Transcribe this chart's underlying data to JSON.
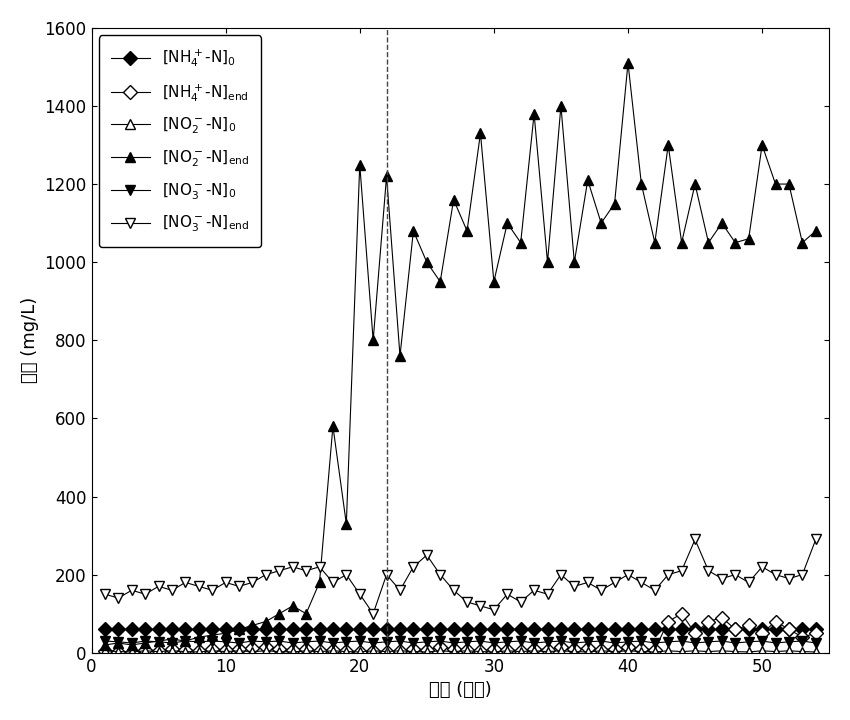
{
  "xlabel": "时间 (周期)",
  "ylabel": "浓度 (mg/L)",
  "xlim": [
    0,
    55
  ],
  "ylim": [
    0,
    1600
  ],
  "yticks": [
    0,
    200,
    400,
    600,
    800,
    1000,
    1200,
    1400,
    1600
  ],
  "xticks": [
    0,
    10,
    20,
    30,
    40,
    50
  ],
  "dashed_vline_x": 22,
  "NH4_N_0_x": [
    1,
    2,
    3,
    4,
    5,
    6,
    7,
    8,
    9,
    10,
    11,
    12,
    13,
    14,
    15,
    16,
    17,
    18,
    19,
    20,
    21,
    22,
    23,
    24,
    25,
    26,
    27,
    28,
    29,
    30,
    31,
    32,
    33,
    34,
    35,
    36,
    37,
    38,
    39,
    40,
    41,
    42,
    43,
    44,
    45,
    46,
    47,
    48,
    49,
    50,
    51,
    52,
    53,
    54
  ],
  "NH4_N_0_y": [
    60,
    60,
    60,
    60,
    60,
    60,
    60,
    60,
    60,
    60,
    60,
    60,
    60,
    60,
    60,
    60,
    60,
    60,
    60,
    60,
    60,
    60,
    60,
    60,
    60,
    60,
    60,
    60,
    60,
    60,
    60,
    60,
    60,
    60,
    60,
    60,
    60,
    60,
    60,
    60,
    60,
    60,
    60,
    60,
    60,
    60,
    60,
    60,
    60,
    60,
    60,
    60,
    60,
    60
  ],
  "NH4_N_end_x": [
    1,
    2,
    3,
    4,
    5,
    6,
    7,
    8,
    9,
    10,
    11,
    12,
    13,
    14,
    15,
    16,
    17,
    18,
    19,
    20,
    21,
    22,
    23,
    24,
    25,
    26,
    27,
    28,
    29,
    30,
    31,
    32,
    33,
    34,
    35,
    36,
    37,
    38,
    39,
    40,
    41,
    42,
    43,
    44,
    45,
    46,
    47,
    48,
    49,
    50,
    51,
    52,
    53,
    54
  ],
  "NH4_N_end_y": [
    5,
    3,
    2,
    8,
    5,
    10,
    8,
    5,
    10,
    8,
    10,
    12,
    15,
    10,
    8,
    10,
    5,
    8,
    5,
    3,
    5,
    3,
    5,
    10,
    8,
    15,
    10,
    8,
    5,
    10,
    8,
    5,
    10,
    8,
    15,
    10,
    12,
    8,
    10,
    15,
    10,
    8,
    80,
    100,
    50,
    80,
    90,
    60,
    70,
    50,
    80,
    60,
    40,
    50
  ],
  "NO2_N_0_x": [
    1,
    2,
    3,
    4,
    5,
    6,
    7,
    8,
    9,
    10,
    11,
    12,
    13,
    14,
    15,
    16,
    17,
    18,
    19,
    20,
    21,
    22,
    23,
    24,
    25,
    26,
    27,
    28,
    29,
    30,
    31,
    32,
    33,
    34,
    35,
    36,
    37,
    38,
    39,
    40,
    41,
    42,
    43,
    44,
    45,
    46,
    47,
    48,
    49,
    50,
    51,
    52,
    53,
    54
  ],
  "NO2_N_0_y": [
    5,
    3,
    2,
    5,
    3,
    5,
    3,
    2,
    5,
    3,
    5,
    3,
    5,
    3,
    2,
    5,
    3,
    5,
    3,
    2,
    5,
    3,
    5,
    3,
    2,
    5,
    3,
    5,
    3,
    2,
    5,
    3,
    5,
    3,
    5,
    3,
    2,
    5,
    3,
    5,
    3,
    2,
    5,
    3,
    5,
    3,
    5,
    3,
    2,
    5,
    3,
    5,
    3,
    2
  ],
  "NO2_N_end_x": [
    1,
    2,
    3,
    4,
    5,
    6,
    7,
    8,
    9,
    10,
    11,
    12,
    13,
    14,
    15,
    16,
    17,
    18,
    19,
    20,
    21,
    22,
    23,
    24,
    25,
    26,
    27,
    28,
    29,
    30,
    31,
    32,
    33,
    34,
    35,
    36,
    37,
    38,
    39,
    40,
    41,
    42,
    43,
    44,
    45,
    46,
    47,
    48,
    49,
    50,
    51,
    52,
    53,
    54
  ],
  "NO2_N_end_y": [
    20,
    25,
    20,
    25,
    30,
    35,
    30,
    40,
    45,
    50,
    60,
    70,
    80,
    100,
    120,
    100,
    180,
    580,
    330,
    1250,
    800,
    1220,
    760,
    1080,
    1000,
    950,
    1160,
    1080,
    1330,
    950,
    1100,
    1050,
    1380,
    1000,
    1400,
    1000,
    1210,
    1100,
    1150,
    1510,
    1200,
    1050,
    1300,
    1050,
    1200,
    1050,
    1100,
    1050,
    1060,
    1300,
    1200,
    1200,
    1050,
    1080
  ],
  "NO3_N_0_x": [
    1,
    2,
    3,
    4,
    5,
    6,
    7,
    8,
    9,
    10,
    11,
    12,
    13,
    14,
    15,
    16,
    17,
    18,
    19,
    20,
    21,
    22,
    23,
    24,
    25,
    26,
    27,
    28,
    29,
    30,
    31,
    32,
    33,
    34,
    35,
    36,
    37,
    38,
    39,
    40,
    41,
    42,
    43,
    44,
    45,
    46,
    47,
    48,
    49,
    50,
    51,
    52,
    53,
    54
  ],
  "NO3_N_0_y": [
    30,
    28,
    25,
    30,
    28,
    25,
    30,
    28,
    30,
    28,
    25,
    30,
    28,
    30,
    25,
    28,
    30,
    25,
    28,
    30,
    25,
    28,
    30,
    25,
    28,
    30,
    25,
    28,
    30,
    25,
    28,
    30,
    25,
    28,
    30,
    25,
    28,
    30,
    25,
    28,
    30,
    25,
    28,
    30,
    25,
    28,
    30,
    25,
    28,
    30,
    25,
    28,
    30,
    25
  ],
  "NO3_N_end_x": [
    1,
    2,
    3,
    4,
    5,
    6,
    7,
    8,
    9,
    10,
    11,
    12,
    13,
    14,
    15,
    16,
    17,
    18,
    19,
    20,
    21,
    22,
    23,
    24,
    25,
    26,
    27,
    28,
    29,
    30,
    31,
    32,
    33,
    34,
    35,
    36,
    37,
    38,
    39,
    40,
    41,
    42,
    43,
    44,
    45,
    46,
    47,
    48,
    49,
    50,
    51,
    52,
    53,
    54
  ],
  "NO3_N_end_y": [
    150,
    140,
    160,
    150,
    170,
    160,
    180,
    170,
    160,
    180,
    170,
    180,
    200,
    210,
    220,
    210,
    220,
    180,
    200,
    150,
    100,
    200,
    160,
    220,
    250,
    200,
    160,
    130,
    120,
    110,
    150,
    130,
    160,
    150,
    200,
    170,
    180,
    160,
    180,
    200,
    180,
    160,
    200,
    210,
    290,
    210,
    190,
    200,
    180,
    220,
    200,
    190,
    200,
    290
  ],
  "line_color": "#000000",
  "marker_size": 7,
  "line_width": 0.8
}
